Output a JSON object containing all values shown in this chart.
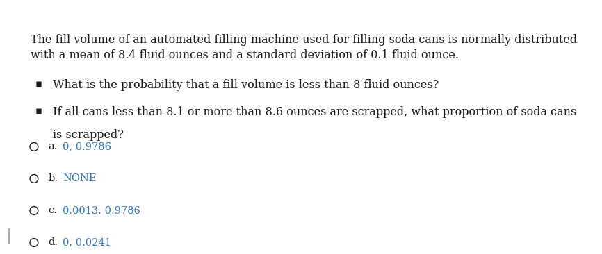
{
  "background_color": "#ffffff",
  "para_line1": "The fill volume of an automated filling machine used for filling soda cans is normally distributed",
  "para_line2": "with a mean of 8.4 fluid ounces and a standard deviation of 0.1 fluid ounce.",
  "bullet1_line1": "What is the probability that a fill volume is less than 8 fluid ounces?",
  "bullet2_line1": "If all cans less than 8.1 or more than 8.6 ounces are scrapped, what proportion of soda cans",
  "bullet2_line2": "is scrapped?",
  "options": [
    {
      "label": "a.",
      "answer": "0, 0.9786"
    },
    {
      "label": "b.",
      "answer": "NONE"
    },
    {
      "label": "c.",
      "answer": "0.0013, 0.9786"
    },
    {
      "label": "d.",
      "answer": "0, 0.0241"
    }
  ],
  "text_color": "#1a1a1a",
  "answer_color": "#2e75b6",
  "font_size": 11.5,
  "font_size_options": 10.5
}
